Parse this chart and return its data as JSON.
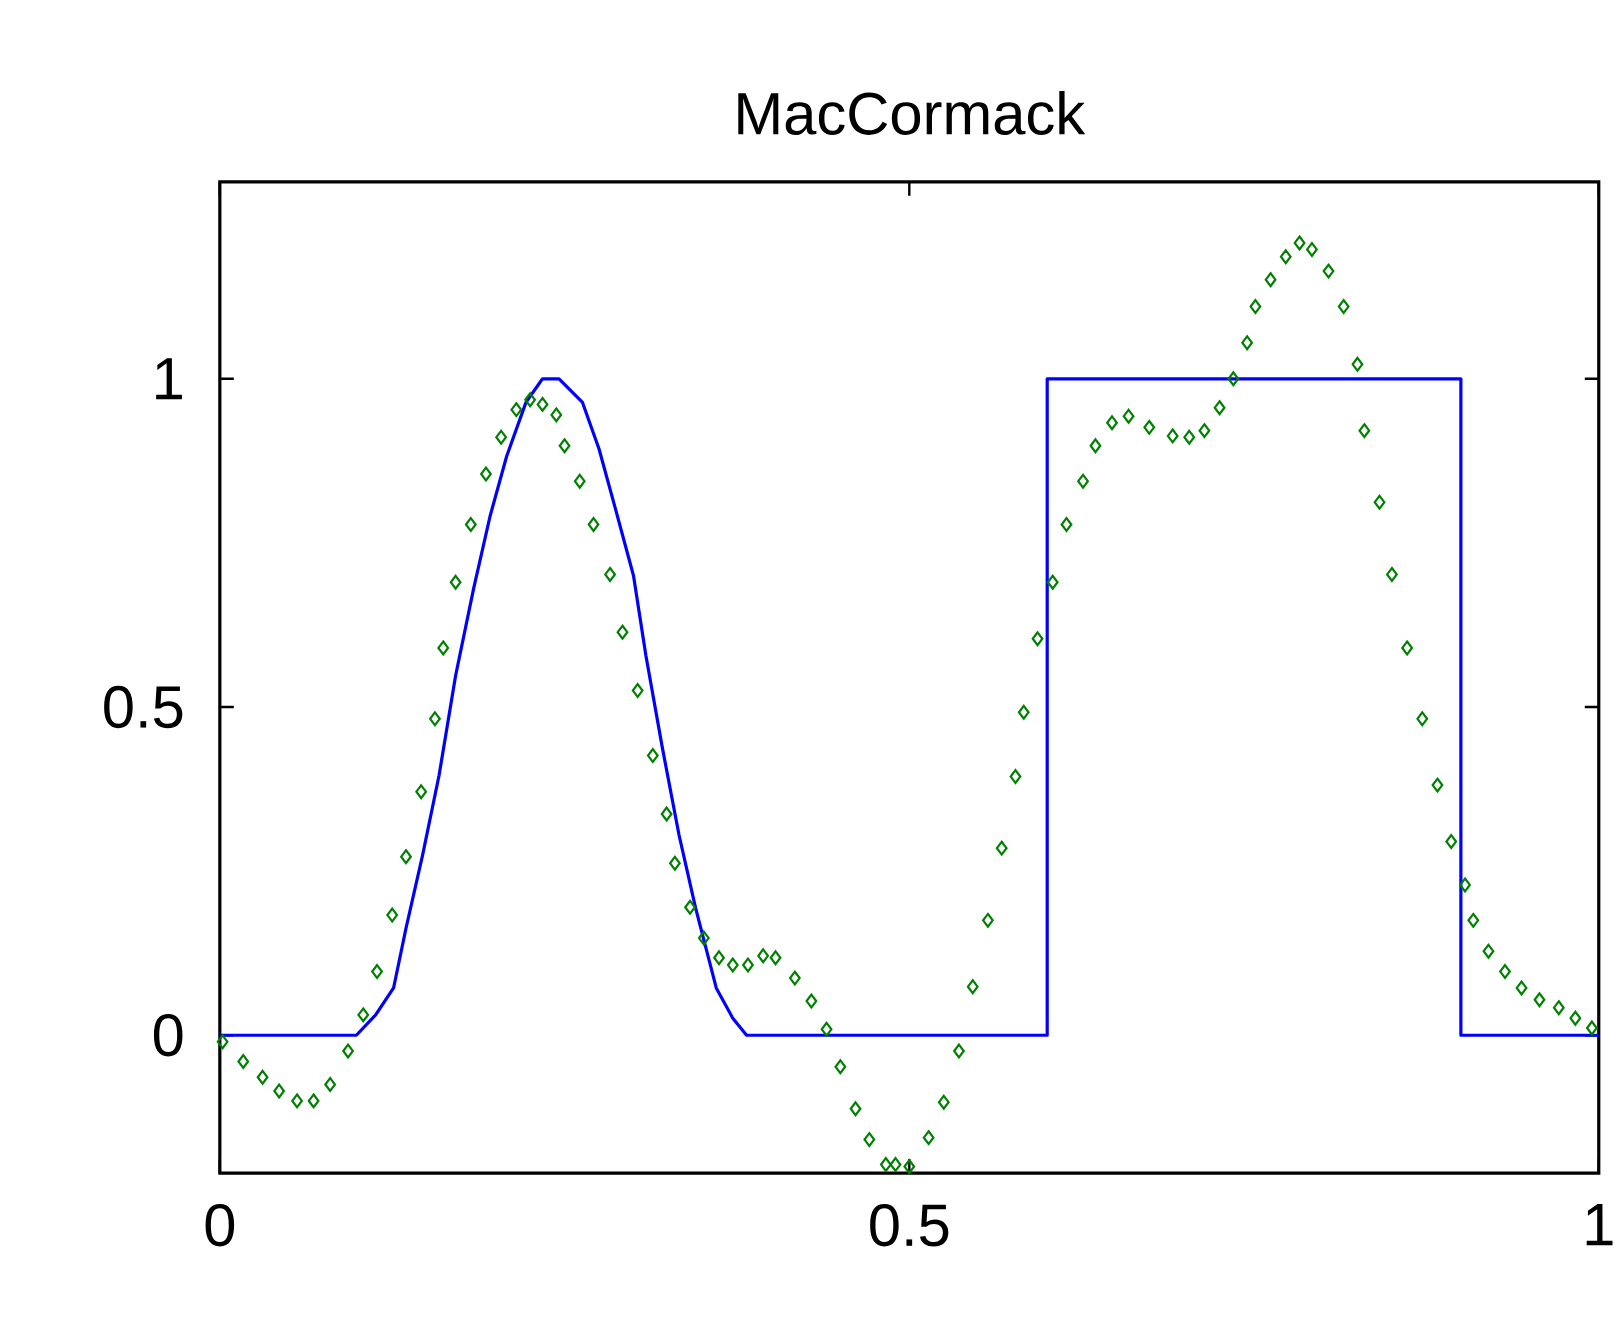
{
  "chart_data": {
    "type": "line",
    "title": "MacCormack",
    "xlim": [
      0,
      1
    ],
    "ylim": [
      -0.21,
      1.3
    ],
    "xticks": [
      0,
      0.5,
      1
    ],
    "yticks": [
      0,
      0.5,
      1
    ],
    "grid": false,
    "series": [
      {
        "color": "#0000ff",
        "marker": "none",
        "x": [
          0,
          0.099,
          0.113,
          0.126,
          0.135,
          0.147,
          0.159,
          0.171,
          0.184,
          0.196,
          0.208,
          0.222,
          0.234,
          0.246,
          0.263,
          0.275,
          0.287,
          0.3,
          0.309,
          0.321,
          0.333,
          0.345,
          0.36,
          0.372,
          0.382,
          0.6,
          0.6,
          0.9,
          0.9,
          1
        ],
        "values": [
          0,
          0,
          0.031,
          0.072,
          0.163,
          0.274,
          0.396,
          0.548,
          0.68,
          0.791,
          0.882,
          0.964,
          1.0,
          1.0,
          0.964,
          0.893,
          0.801,
          0.7,
          0.578,
          0.437,
          0.305,
          0.194,
          0.072,
          0.026,
          0,
          0,
          1,
          1,
          0,
          0
        ]
      },
      {
        "type": "scatter",
        "color": "#008000",
        "marker": "diamond",
        "x": [
          0.002,
          0.017,
          0.031,
          0.043,
          0.056,
          0.068,
          0.08,
          0.093,
          0.104,
          0.114,
          0.125,
          0.135,
          0.146,
          0.156,
          0.162,
          0.171,
          0.182,
          0.193,
          0.204,
          0.215,
          0.225,
          0.234,
          0.244,
          0.25,
          0.261,
          0.271,
          0.283,
          0.292,
          0.303,
          0.314,
          0.324,
          0.33,
          0.341,
          0.351,
          0.362,
          0.372,
          0.383,
          0.394,
          0.403,
          0.417,
          0.429,
          0.44,
          0.45,
          0.461,
          0.471,
          0.483,
          0.49,
          0.5,
          0.514,
          0.525,
          0.536,
          0.546,
          0.557,
          0.567,
          0.577,
          0.583,
          0.593,
          0.604,
          0.614,
          0.626,
          0.635,
          0.647,
          0.659,
          0.674,
          0.691,
          0.703,
          0.714,
          0.725,
          0.735,
          0.745,
          0.751,
          0.762,
          0.773,
          0.783,
          0.792,
          0.804,
          0.815,
          0.825,
          0.83,
          0.841,
          0.85,
          0.861,
          0.872,
          0.883,
          0.893,
          0.903,
          0.909,
          0.92,
          0.932,
          0.944,
          0.957,
          0.971,
          0.983,
          0.995
        ],
        "values": [
          -0.01,
          -0.04,
          -0.064,
          -0.085,
          -0.1,
          -0.1,
          -0.075,
          -0.024,
          0.031,
          0.097,
          0.183,
          0.272,
          0.371,
          0.482,
          0.59,
          0.69,
          0.778,
          0.855,
          0.911,
          0.953,
          0.968,
          0.961,
          0.945,
          0.898,
          0.844,
          0.778,
          0.702,
          0.614,
          0.525,
          0.426,
          0.337,
          0.262,
          0.195,
          0.148,
          0.118,
          0.107,
          0.107,
          0.121,
          0.118,
          0.087,
          0.052,
          0.009,
          -0.048,
          -0.112,
          -0.159,
          -0.197,
          -0.197,
          -0.2,
          -0.156,
          -0.102,
          -0.024,
          0.074,
          0.175,
          0.285,
          0.394,
          0.492,
          0.604,
          0.69,
          0.778,
          0.844,
          0.898,
          0.933,
          0.943,
          0.926,
          0.913,
          0.911,
          0.921,
          0.956,
          1.0,
          1.055,
          1.11,
          1.151,
          1.186,
          1.207,
          1.197,
          1.164,
          1.11,
          1.022,
          0.921,
          0.812,
          0.702,
          0.59,
          0.482,
          0.381,
          0.295,
          0.229,
          0.175,
          0.128,
          0.097,
          0.072,
          0.054,
          0.042,
          0.026,
          0.011
        ]
      }
    ]
  }
}
